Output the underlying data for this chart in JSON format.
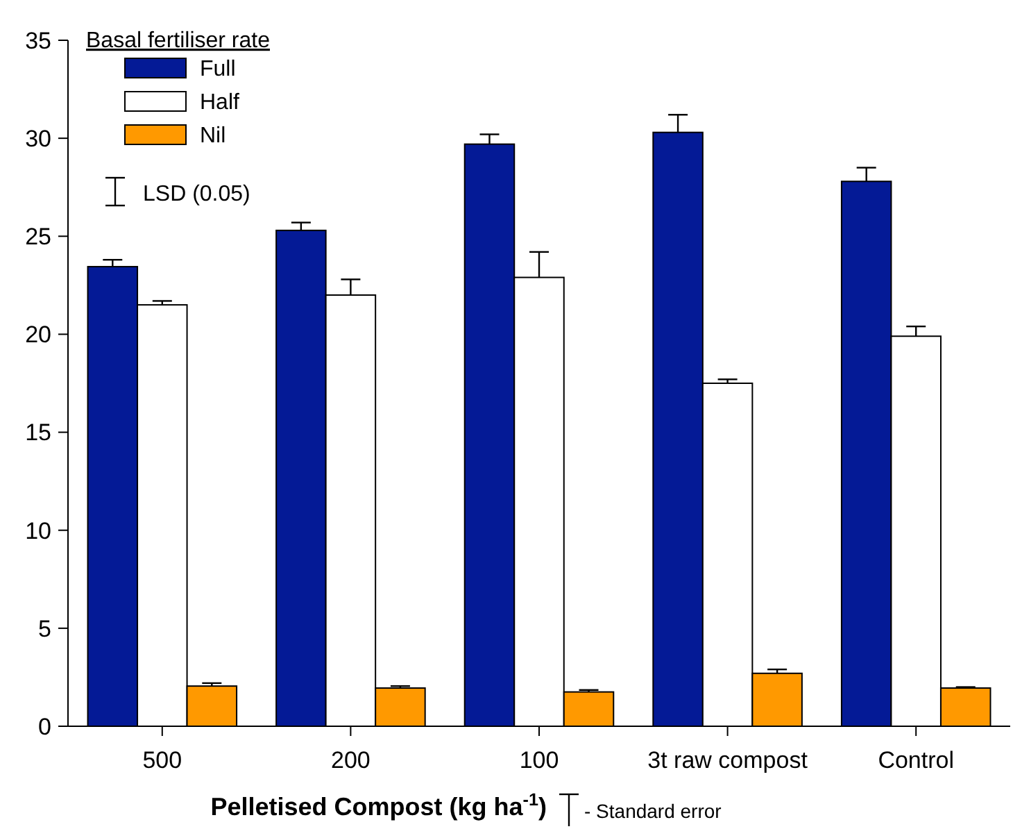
{
  "chart_data": {
    "type": "bar",
    "xlabel": "Pelletised Compost (kg ha$^{-1}$)",
    "legend_title": "Basal fertiliser rate",
    "categories": [
      "500",
      "200",
      "100",
      "3t raw compost",
      "Control"
    ],
    "series": [
      {
        "name": "Full",
        "color": "#041a96",
        "values": [
          23.45,
          25.3,
          29.7,
          30.3,
          27.8
        ],
        "errors": [
          0.35,
          0.4,
          0.5,
          0.9,
          0.7
        ]
      },
      {
        "name": "Half",
        "color": "#ffffff",
        "values": [
          21.5,
          22.0,
          22.9,
          17.5,
          19.9
        ],
        "errors": [
          0.2,
          0.8,
          1.3,
          0.2,
          0.5
        ]
      },
      {
        "name": "Nil",
        "color": "#ff9900",
        "values": [
          2.05,
          1.95,
          1.75,
          2.7,
          1.95
        ],
        "errors": [
          0.15,
          0.1,
          0.1,
          0.2,
          0.05
        ]
      }
    ],
    "ylim": [
      0,
      35
    ],
    "yticks": [
      0,
      5,
      10,
      15,
      20,
      25,
      30,
      35
    ],
    "grid": false,
    "legend": "top left",
    "annotations": [
      "LSD (0.05)",
      "- Standard error"
    ]
  }
}
